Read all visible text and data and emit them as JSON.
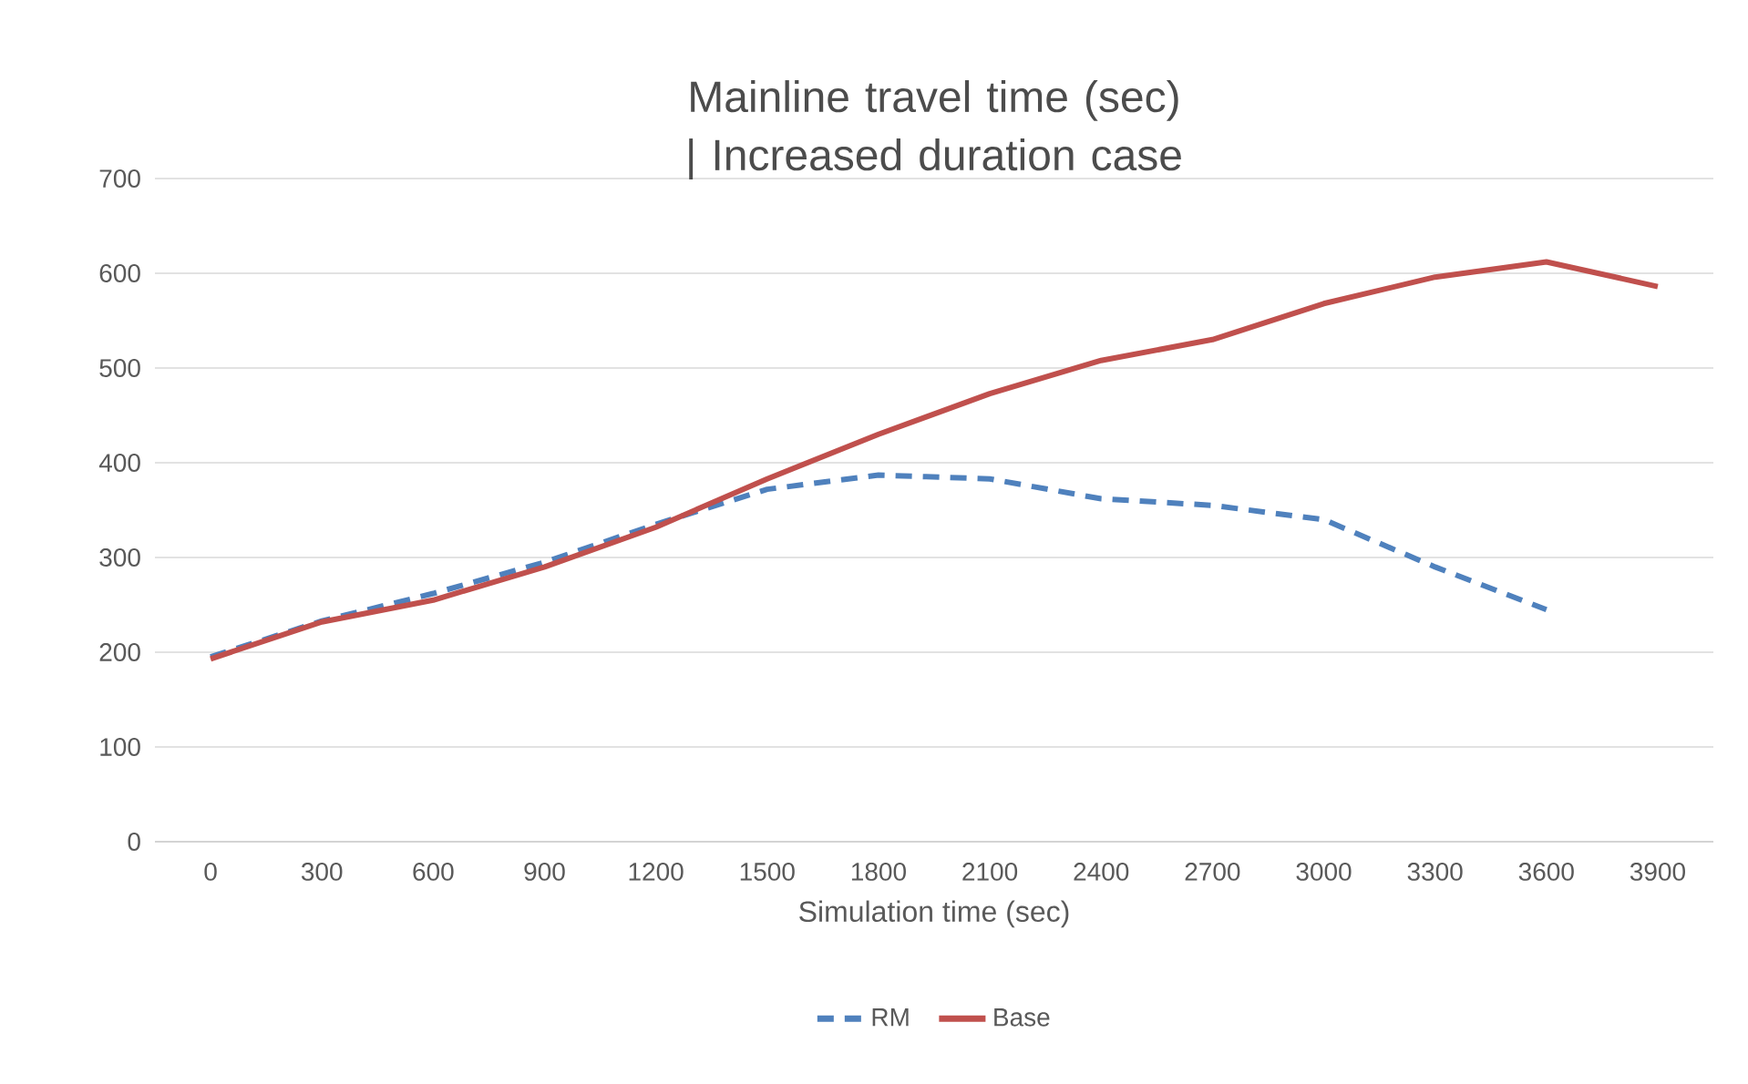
{
  "chart_data": {
    "type": "line",
    "title": "Mainline travel time (sec) | Increased duration case",
    "xlabel": "Simulation time (sec)",
    "categories": [
      "0",
      "300",
      "600",
      "900",
      "1200",
      "1500",
      "1800",
      "2100",
      "2400",
      "2700",
      "3000",
      "3300",
      "3600",
      "3900"
    ],
    "series": [
      {
        "name": "RM",
        "color": "#4f81bd",
        "line_style": "dashed",
        "values": [
          195,
          233,
          262,
          295,
          335,
          372,
          387,
          383,
          362,
          355,
          340,
          290,
          245,
          null
        ]
      },
      {
        "name": "Base",
        "color": "#c0504d",
        "line_style": "solid",
        "values": [
          193,
          232,
          255,
          290,
          332,
          383,
          430,
          473,
          508,
          530,
          568,
          596,
          612,
          586
        ]
      }
    ],
    "ylim": [
      0,
      700
    ],
    "yticks": [
      0,
      100,
      200,
      300,
      400,
      500,
      600,
      700
    ],
    "grid": "y",
    "legend": "bottom",
    "marker": "none"
  }
}
